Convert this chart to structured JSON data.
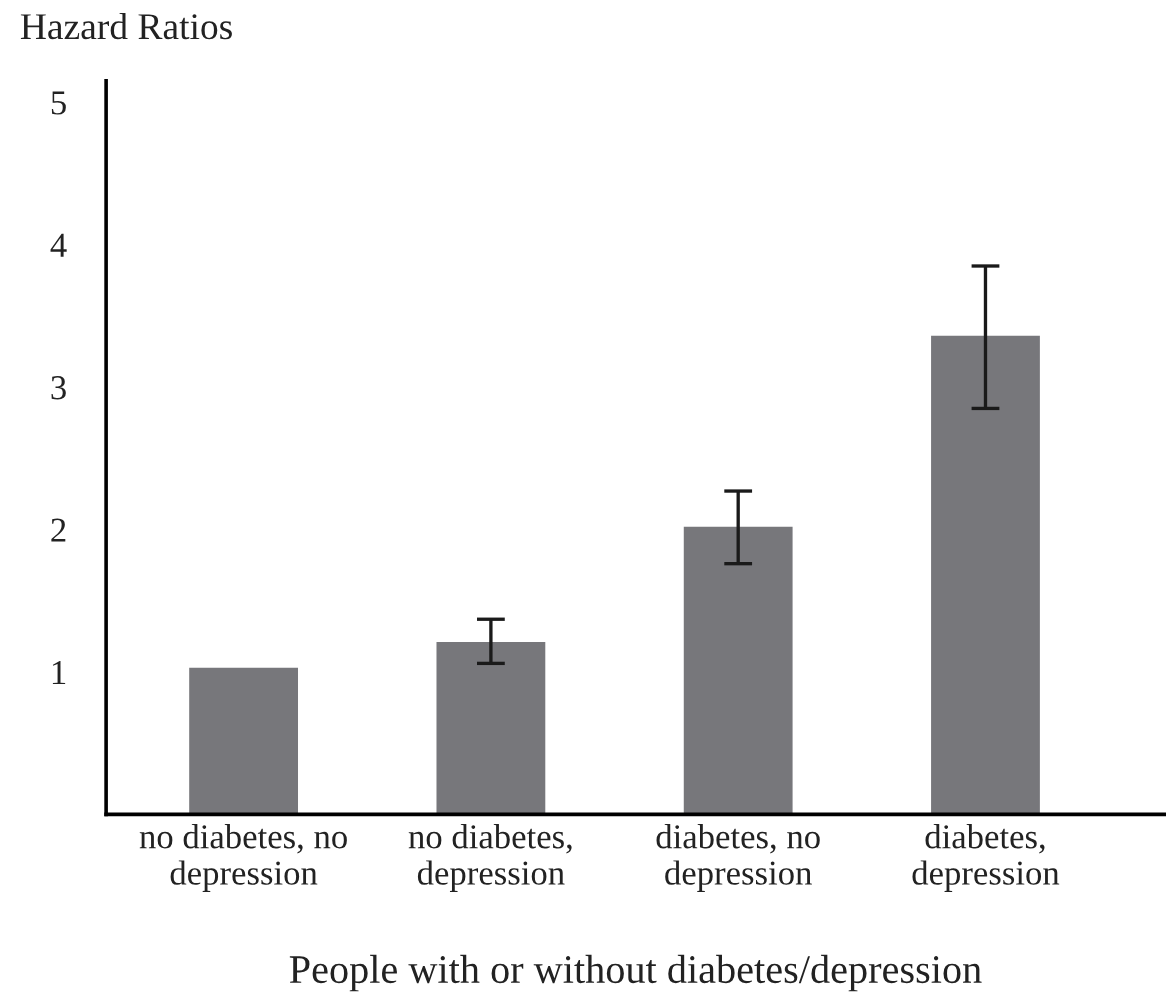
{
  "chart_data": {
    "type": "bar",
    "ylabel": "Hazard Ratios",
    "xlabel": "People with or without diabetes/depression",
    "categories": [
      "no diabetes, no\ndepression",
      "no diabetes,\ndepression",
      "diabetes, no\ndepression",
      "diabetes,\ndepression"
    ],
    "values": [
      1.03,
      1.21,
      2.02,
      3.36
    ],
    "errors": [
      null,
      [
        1.06,
        1.37
      ],
      [
        1.76,
        2.27
      ],
      [
        2.85,
        3.85
      ]
    ],
    "color": "#77777b",
    "ylim": [
      0,
      5.15
    ],
    "yticks": [
      1,
      2,
      3,
      4,
      5
    ],
    "grid": false,
    "legend": false
  }
}
